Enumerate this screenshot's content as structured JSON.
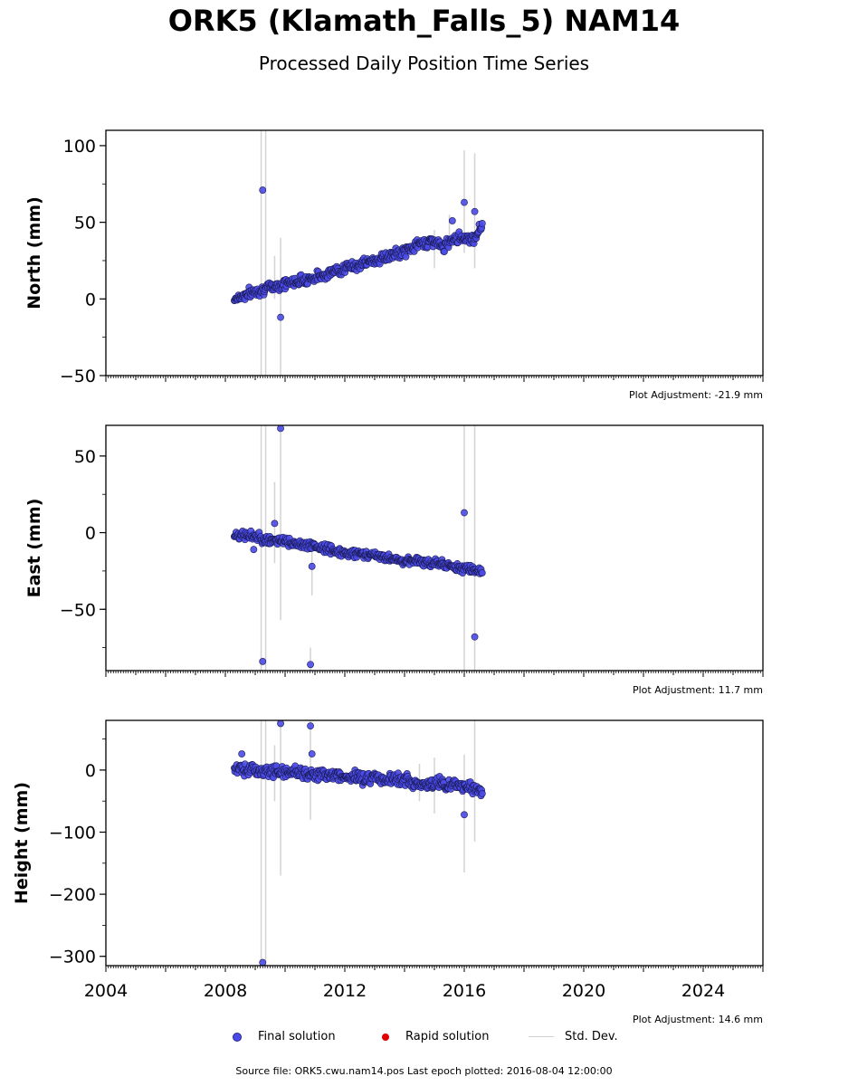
{
  "title": "ORK5 (Klamath_Falls_5) NAM14",
  "subtitle": "Processed Daily Position Time Series",
  "footer": "Source file: ORK5.cwu.nam14.pos  Last epoch plotted: 2016-08-04 12:00:00",
  "legend": {
    "final": "Final solution",
    "rapid": "Rapid solution",
    "std": "Std. Dev."
  },
  "colors": {
    "final": "#4a4ae8",
    "rapid": "#e00000",
    "std": "#d3d3d3"
  },
  "chart_data": [
    {
      "type": "scatter",
      "ylabel": "North (mm)",
      "adjustment": "Plot Adjustment: -21.9 mm",
      "xlim": [
        2004,
        2026
      ],
      "ylim": [
        -50,
        110
      ],
      "yticks": [
        -50,
        0,
        50,
        100
      ],
      "ytick_labels": [
        "−50",
        "0",
        "50",
        "100"
      ],
      "series": [
        {
          "trend": [
            [
              2008.3,
              0
            ],
            [
              2009.0,
              5
            ],
            [
              2010.0,
              10
            ],
            [
              2011.0,
              14
            ],
            [
              2012.0,
              20
            ],
            [
              2013.0,
              25
            ],
            [
              2014.0,
              31
            ],
            [
              2014.5,
              36
            ],
            [
              2015.0,
              38
            ],
            [
              2015.3,
              33
            ],
            [
              2015.6,
              40
            ],
            [
              2016.0,
              40
            ],
            [
              2016.3,
              39
            ],
            [
              2016.6,
              48
            ]
          ],
          "spread": 2.5,
          "outliers": [
            [
              2009.25,
              71
            ],
            [
              2009.85,
              -12
            ],
            [
              2016.0,
              63
            ],
            [
              2016.35,
              57
            ],
            [
              2015.6,
              51
            ]
          ],
          "errorbars": [
            [
              2009.2,
              -50,
              110
            ],
            [
              2009.35,
              -50,
              110
            ],
            [
              2009.85,
              -50,
              40
            ],
            [
              2009.65,
              0,
              28
            ],
            [
              2016.0,
              30,
              97
            ],
            [
              2016.35,
              20,
              95
            ],
            [
              2015.5,
              35,
              55
            ],
            [
              2015.0,
              20,
              45
            ]
          ]
        }
      ]
    },
    {
      "type": "scatter",
      "ylabel": "East (mm)",
      "adjustment": "Plot Adjustment: 11.7 mm",
      "xlim": [
        2004,
        2026
      ],
      "ylim": [
        -90,
        70
      ],
      "yticks": [
        -50,
        0,
        50
      ],
      "ytick_labels": [
        "−50",
        "0",
        "50"
      ],
      "series": [
        {
          "trend": [
            [
              2008.3,
              -1
            ],
            [
              2009.0,
              -3
            ],
            [
              2010.0,
              -6
            ],
            [
              2011.0,
              -9
            ],
            [
              2012.0,
              -13
            ],
            [
              2013.0,
              -15
            ],
            [
              2014.0,
              -18
            ],
            [
              2015.0,
              -20
            ],
            [
              2016.0,
              -23
            ],
            [
              2016.6,
              -25
            ]
          ],
          "spread": 2.0,
          "outliers": [
            [
              2009.85,
              68
            ],
            [
              2009.25,
              -84
            ],
            [
              2010.85,
              -86
            ],
            [
              2016.35,
              -68
            ],
            [
              2016.0,
              13
            ],
            [
              2010.9,
              -22
            ],
            [
              2009.65,
              6
            ],
            [
              2008.95,
              -11
            ]
          ],
          "errorbars": [
            [
              2009.2,
              -90,
              70
            ],
            [
              2009.35,
              -90,
              70
            ],
            [
              2009.85,
              -57,
              70
            ],
            [
              2009.65,
              -20,
              33
            ],
            [
              2010.85,
              -90,
              -75
            ],
            [
              2010.9,
              -41,
              -5
            ],
            [
              2016.0,
              -90,
              70
            ],
            [
              2016.35,
              -90,
              70
            ]
          ]
        }
      ]
    },
    {
      "type": "scatter",
      "ylabel": "Height (mm)",
      "adjustment": "Plot Adjustment: 14.6 mm",
      "xlim": [
        2004,
        2026
      ],
      "ylim": [
        -315,
        80
      ],
      "yticks": [
        -300,
        -200,
        -100,
        0
      ],
      "ytick_labels": [
        "−300",
        "−200",
        "−100",
        "0"
      ],
      "xticks": [
        2004,
        2008,
        2012,
        2016,
        2020,
        2024
      ],
      "series": [
        {
          "trend": [
            [
              2008.3,
              2
            ],
            [
              2009.0,
              0
            ],
            [
              2010.0,
              -3
            ],
            [
              2011.0,
              -8
            ],
            [
              2012.0,
              -10
            ],
            [
              2013.0,
              -13
            ],
            [
              2014.0,
              -15
            ],
            [
              2014.7,
              -25
            ],
            [
              2015.0,
              -22
            ],
            [
              2016.0,
              -25
            ],
            [
              2016.6,
              -35
            ]
          ],
          "spread": 7,
          "outliers": [
            [
              2009.85,
              75
            ],
            [
              2010.85,
              71
            ],
            [
              2010.9,
              26
            ],
            [
              2009.25,
              -310
            ],
            [
              2016.0,
              -72
            ],
            [
              2008.55,
              26
            ]
          ],
          "errorbars": [
            [
              2009.2,
              -315,
              80
            ],
            [
              2009.35,
              -315,
              80
            ],
            [
              2009.85,
              -170,
              80
            ],
            [
              2009.65,
              -50,
              40
            ],
            [
              2010.85,
              -80,
              80
            ],
            [
              2016.0,
              -165,
              25
            ],
            [
              2016.35,
              -115,
              80
            ],
            [
              2015.0,
              -70,
              20
            ],
            [
              2014.5,
              -50,
              10
            ]
          ]
        }
      ]
    }
  ]
}
